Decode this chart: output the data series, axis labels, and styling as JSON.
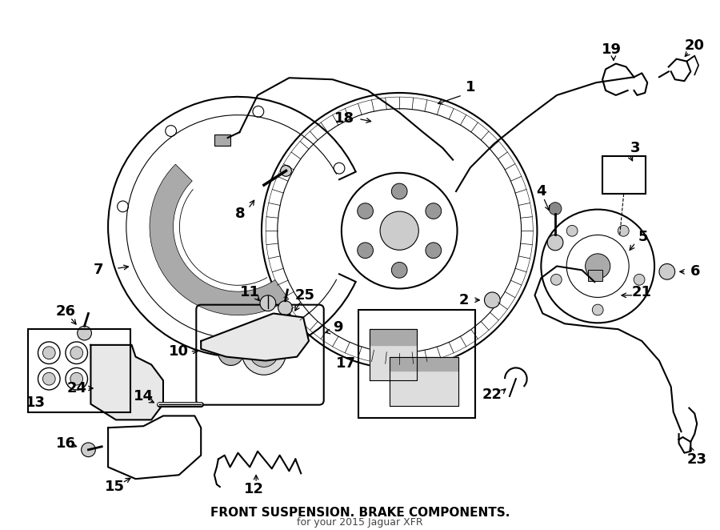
{
  "title": "FRONT SUSPENSION. BRAKE COMPONENTS.",
  "subtitle": "for your 2015 Jaguar XFR",
  "bg_color": "#ffffff",
  "line_color": "#000000",
  "fig_width": 9.0,
  "fig_height": 6.62,
  "dpi": 100
}
